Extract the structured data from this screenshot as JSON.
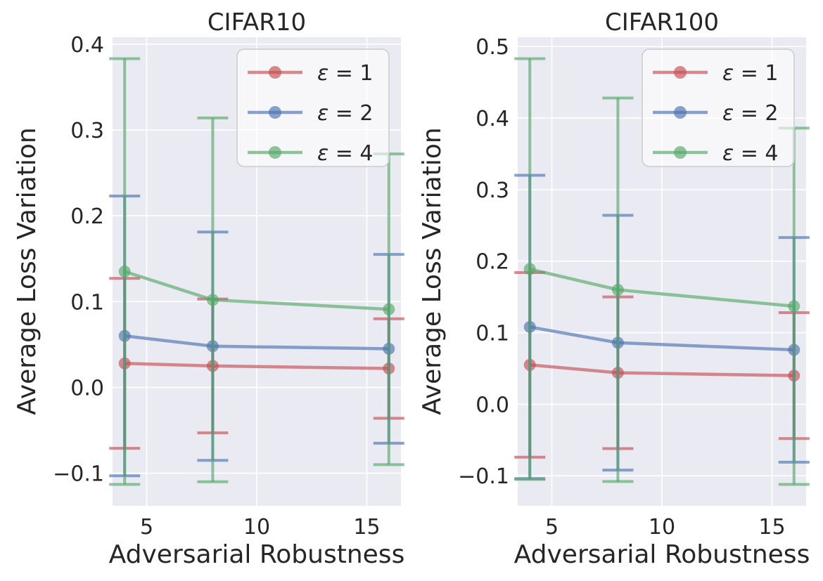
{
  "style": {
    "axes_background": "#eaeaf2",
    "grid_color": "#ffffff",
    "text_color": "#262626",
    "series_alpha": 0.65,
    "red": "#c44e52",
    "blue": "#4c72b0",
    "green": "#55a868"
  },
  "chart_data": [
    {
      "type": "line",
      "title": "CIFAR10",
      "xlabel": "Adversarial Robustness",
      "ylabel": "Average Loss Variation",
      "x": [
        4,
        8,
        16
      ],
      "xticks": [
        5,
        10,
        15
      ],
      "xlim": [
        3.45,
        16.55
      ],
      "yticks": [
        -0.1,
        0,
        0.1,
        0.2,
        0.3,
        0.4
      ],
      "ylim": [
        -0.138,
        0.408
      ],
      "grid": true,
      "legend_position": "upper right",
      "error_bars": "symmetric std, capped",
      "series": [
        {
          "name": "ε = 1",
          "color": "#c44e52",
          "values": [
            0.028,
            0.025,
            0.022
          ],
          "errors": [
            0.099,
            0.078,
            0.058
          ]
        },
        {
          "name": "ε = 2",
          "color": "#4c72b0",
          "values": [
            0.06,
            0.048,
            0.045
          ],
          "errors": [
            0.163,
            0.133,
            0.11
          ]
        },
        {
          "name": "ε = 4",
          "color": "#55a868",
          "values": [
            0.135,
            0.102,
            0.091
          ],
          "errors": [
            0.248,
            0.212,
            0.181
          ]
        }
      ]
    },
    {
      "type": "line",
      "title": "CIFAR100",
      "xlabel": "Adversarial Robustness",
      "ylabel": "Average Loss Variation",
      "x": [
        4,
        8,
        16
      ],
      "xticks": [
        5,
        10,
        15
      ],
      "xlim": [
        3.45,
        16.55
      ],
      "yticks": [
        -0.1,
        0,
        0.1,
        0.2,
        0.3,
        0.4,
        0.5
      ],
      "ylim": [
        -0.142,
        0.513
      ],
      "grid": true,
      "legend_position": "upper right",
      "error_bars": "symmetric std, capped",
      "series": [
        {
          "name": "ε = 1",
          "color": "#c44e52",
          "values": [
            0.055,
            0.044,
            0.04
          ],
          "errors": [
            0.129,
            0.106,
            0.088
          ]
        },
        {
          "name": "ε = 2",
          "color": "#4c72b0",
          "values": [
            0.108,
            0.086,
            0.076
          ],
          "errors": [
            0.212,
            0.178,
            0.157
          ]
        },
        {
          "name": "ε = 4",
          "color": "#55a868",
          "values": [
            0.189,
            0.16,
            0.137
          ],
          "errors": [
            0.294,
            0.268,
            0.249
          ]
        }
      ]
    }
  ]
}
